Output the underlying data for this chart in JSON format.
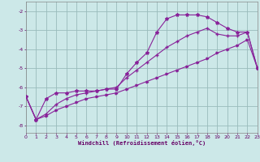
{
  "xlabel": "Windchill (Refroidissement éolien,°C)",
  "bg_color": "#cce8e8",
  "line_color": "#882299",
  "grid_color": "#99bbbb",
  "xlim": [
    0,
    23
  ],
  "ylim": [
    -8.4,
    -1.5
  ],
  "xticks": [
    0,
    1,
    2,
    3,
    4,
    5,
    6,
    7,
    8,
    9,
    10,
    11,
    12,
    13,
    14,
    15,
    16,
    17,
    18,
    19,
    20,
    21,
    22,
    23
  ],
  "yticks": [
    -8,
    -7,
    -6,
    -5,
    -4,
    -3,
    -2
  ],
  "line1_x": [
    0,
    1,
    2,
    3,
    4,
    5,
    6,
    7,
    8,
    9,
    10,
    11,
    12,
    13,
    14,
    15,
    16,
    17,
    18,
    19,
    20,
    21,
    22,
    23
  ],
  "line1_y": [
    -6.5,
    -7.7,
    -6.6,
    -6.3,
    -6.3,
    -6.2,
    -6.2,
    -6.2,
    -6.1,
    -6.1,
    -5.3,
    -4.7,
    -4.2,
    -3.1,
    -2.4,
    -2.2,
    -2.2,
    -2.2,
    -2.3,
    -2.6,
    -2.9,
    -3.1,
    -3.1,
    -5.0
  ],
  "line2_x": [
    0,
    1,
    2,
    3,
    4,
    5,
    6,
    7,
    8,
    9,
    10,
    11,
    12,
    13,
    14,
    15,
    16,
    17,
    18,
    19,
    20,
    21,
    22,
    23
  ],
  "line2_y": [
    -6.5,
    -7.7,
    -7.4,
    -6.9,
    -6.6,
    -6.4,
    -6.3,
    -6.2,
    -6.1,
    -6.0,
    -5.5,
    -5.1,
    -4.7,
    -4.3,
    -3.9,
    -3.6,
    -3.3,
    -3.1,
    -2.9,
    -3.2,
    -3.3,
    -3.3,
    -3.1,
    -5.0
  ],
  "line3_x": [
    0,
    1,
    2,
    3,
    4,
    5,
    6,
    7,
    8,
    9,
    10,
    11,
    12,
    13,
    14,
    15,
    16,
    17,
    18,
    19,
    20,
    21,
    22,
    23
  ],
  "line3_y": [
    -6.5,
    -7.7,
    -7.5,
    -7.2,
    -7.0,
    -6.8,
    -6.6,
    -6.5,
    -6.4,
    -6.3,
    -6.1,
    -5.9,
    -5.7,
    -5.5,
    -5.3,
    -5.1,
    -4.9,
    -4.7,
    -4.5,
    -4.2,
    -4.0,
    -3.8,
    -3.5,
    -5.0
  ]
}
